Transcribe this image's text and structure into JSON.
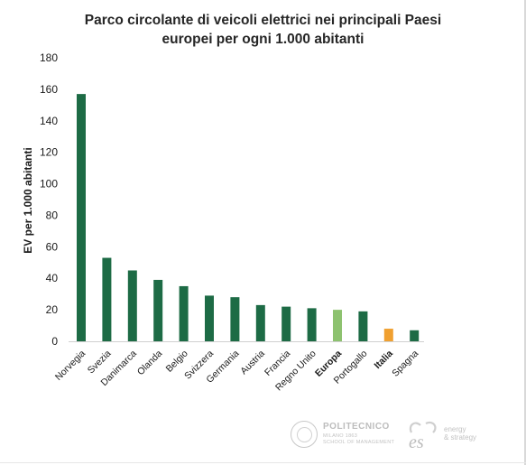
{
  "chart_data": {
    "type": "bar",
    "title": [
      "Parco circolante di veicoli elettrici nei principali Paesi",
      "europei per ogni 1.000 abitanti"
    ],
    "xlabel": "",
    "ylabel": "EV per 1.000 abitanti",
    "ylim": [
      0,
      180
    ],
    "yticks": [
      0,
      20,
      40,
      60,
      80,
      100,
      120,
      140,
      160,
      180
    ],
    "grid": false,
    "categories": [
      "Norvegia",
      "Svezia",
      "Danimarca",
      "Olanda",
      "Belgio",
      "Svizzera",
      "Germania",
      "Austria",
      "Francia",
      "Regno Unito",
      "Europa",
      "Portogallo",
      "Italia",
      "Spagna"
    ],
    "values": [
      157,
      53,
      45,
      39,
      35,
      29,
      28,
      23,
      22,
      21,
      20,
      19,
      8,
      7
    ],
    "bold_categories": [
      "Europa",
      "Italia"
    ],
    "colors": {
      "default": "#1d6b45",
      "Europa": "#8dc26f",
      "Italia": "#f0a030"
    }
  },
  "logos": {
    "politecnico_name": "POLITECNICO",
    "politecnico_line1": "MILANO 1863",
    "politecnico_line2": "SCHOOL OF MANAGEMENT",
    "es_mark": "es",
    "es_line1": "energy",
    "es_line2": "& strategy"
  }
}
